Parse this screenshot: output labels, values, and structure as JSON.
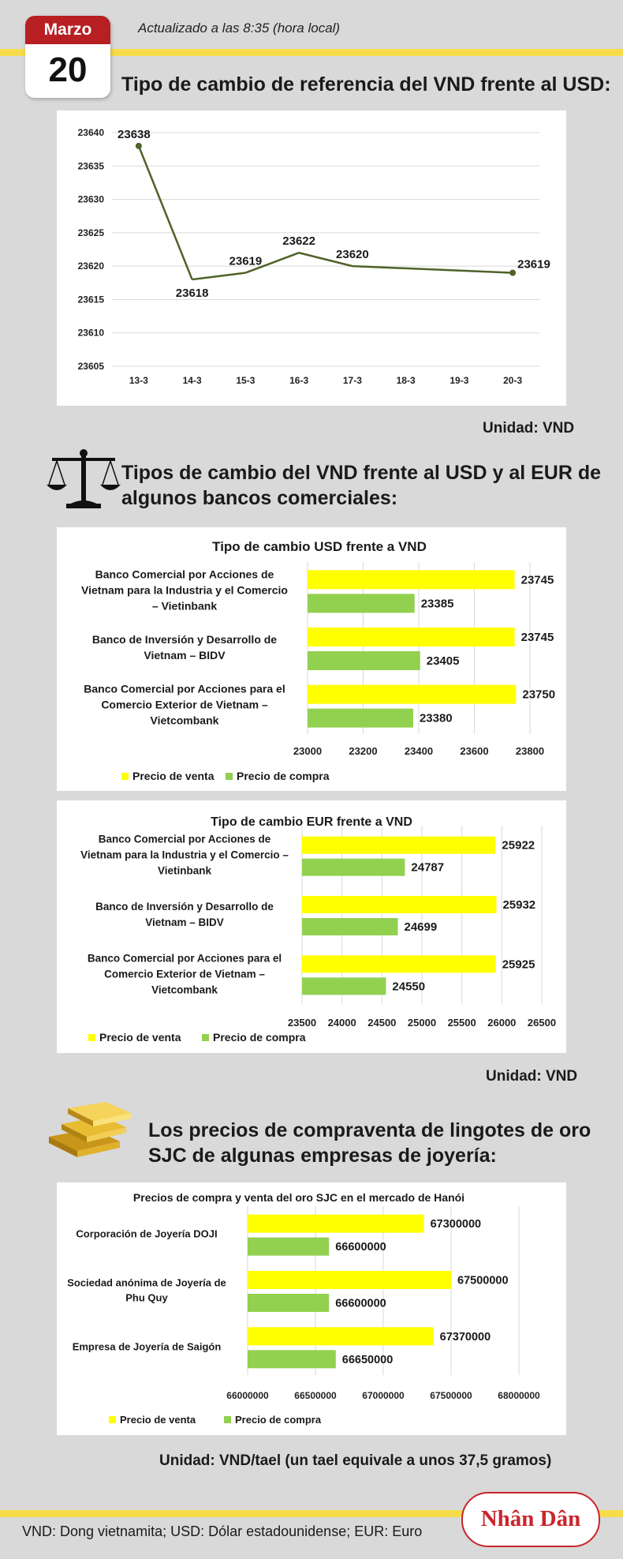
{
  "header": {
    "month": "Marzo",
    "day": "20",
    "updated": "Actualizado a las 8:35 (hora local)"
  },
  "section1": {
    "title": "Tipo de cambio de referencia del VND frente al USD:",
    "unit": "Unidad: VND"
  },
  "section2": {
    "title_line1": "Tipos de cambio del VND frente al USD y al EUR de",
    "title_line2": "algunos bancos comerciales:",
    "unit": "Unidad: VND"
  },
  "section3": {
    "title_line1": "Los precios de compraventa de lingotes de oro",
    "title_line2": "SJC de algunas empresas de joyería:",
    "unit": "Unidad: VND/tael (un tael equivale a unos 37,5 gramos)"
  },
  "footer": {
    "note": "VND: Dong vietnamita; USD: Dólar estadounidense; EUR: Euro",
    "logo": "Nhân Dân"
  },
  "colors": {
    "venta": "#ffff00",
    "compra": "#92d050",
    "line": "#4f6228",
    "accent": "#b71f23"
  },
  "chart_data": [
    {
      "type": "line",
      "title": "",
      "categories": [
        "13-3",
        "14-3",
        "15-3",
        "16-3",
        "17-3",
        "18-3",
        "19-3",
        "20-3"
      ],
      "points": [
        {
          "x": "13-3",
          "y": 23638
        },
        {
          "x": "14-3",
          "y": 23618
        },
        {
          "x": "15-3",
          "y": 23619
        },
        {
          "x": "16-3",
          "y": 23622
        },
        {
          "x": "17-3",
          "y": 23620
        },
        {
          "x": "20-3",
          "y": 23619
        }
      ],
      "ylim": [
        23605,
        23640
      ],
      "yticks": [
        23605,
        23610,
        23615,
        23620,
        23625,
        23630,
        23635,
        23640
      ],
      "grid": true
    },
    {
      "type": "bar",
      "title": "Tipo de cambio USD frente a VND",
      "categories": [
        [
          "Banco Comercial por Acciones de",
          "Vietnam para la Industria y el Comercio",
          "– Vietinbank"
        ],
        [
          "Banco de Inversión y Desarrollo de",
          "Vietnam – BIDV"
        ],
        [
          "Banco Comercial por Acciones para el",
          "Comercio Exterior de Vietnam –",
          "Vietcombank"
        ]
      ],
      "series": [
        {
          "name": "Precio de venta",
          "values": [
            23745,
            23745,
            23750
          ]
        },
        {
          "name": "Precio de compra",
          "values": [
            23385,
            23405,
            23380
          ]
        }
      ],
      "xlim": [
        23000,
        23800
      ],
      "xticks": [
        23000,
        23200,
        23400,
        23600,
        23800
      ],
      "legend": "bottom-left",
      "grid": true
    },
    {
      "type": "bar",
      "title": "Tipo de cambio EUR frente a VND",
      "categories": [
        [
          "Banco Comercial por Acciones de",
          "Vietnam para la Industria y el Comercio –",
          "Vietinbank"
        ],
        [
          "Banco de Inversión y Desarrollo de",
          "Vietnam – BIDV"
        ],
        [
          "Banco Comercial por Acciones para el",
          "Comercio Exterior de Vietnam –",
          "Vietcombank"
        ]
      ],
      "series": [
        {
          "name": "Precio de venta",
          "values": [
            25922,
            25932,
            25925
          ]
        },
        {
          "name": "Precio de compra",
          "values": [
            24787,
            24699,
            24550
          ]
        }
      ],
      "xlim": [
        23500,
        26500
      ],
      "xticks": [
        23500,
        24000,
        24500,
        25000,
        25500,
        26000,
        26500
      ],
      "legend": "bottom-left",
      "grid": true
    },
    {
      "type": "bar",
      "title": "Precios de compra y venta del oro SJC en el mercado de Hanói",
      "categories": [
        [
          "Corporación de Joyería DOJI"
        ],
        [
          "Sociedad anónima de Joyería de",
          "Phu Quy"
        ],
        [
          "Empresa de Joyería de Saigón"
        ]
      ],
      "series": [
        {
          "name": "Precio de venta",
          "values": [
            67300000,
            67500000,
            67370000
          ]
        },
        {
          "name": "Precio de compra",
          "values": [
            66600000,
            66600000,
            66650000
          ]
        }
      ],
      "xlim": [
        66000000,
        68000000
      ],
      "xticks": [
        66000000,
        66500000,
        67000000,
        67500000,
        68000000
      ],
      "legend": "bottom-left",
      "grid": true
    }
  ]
}
